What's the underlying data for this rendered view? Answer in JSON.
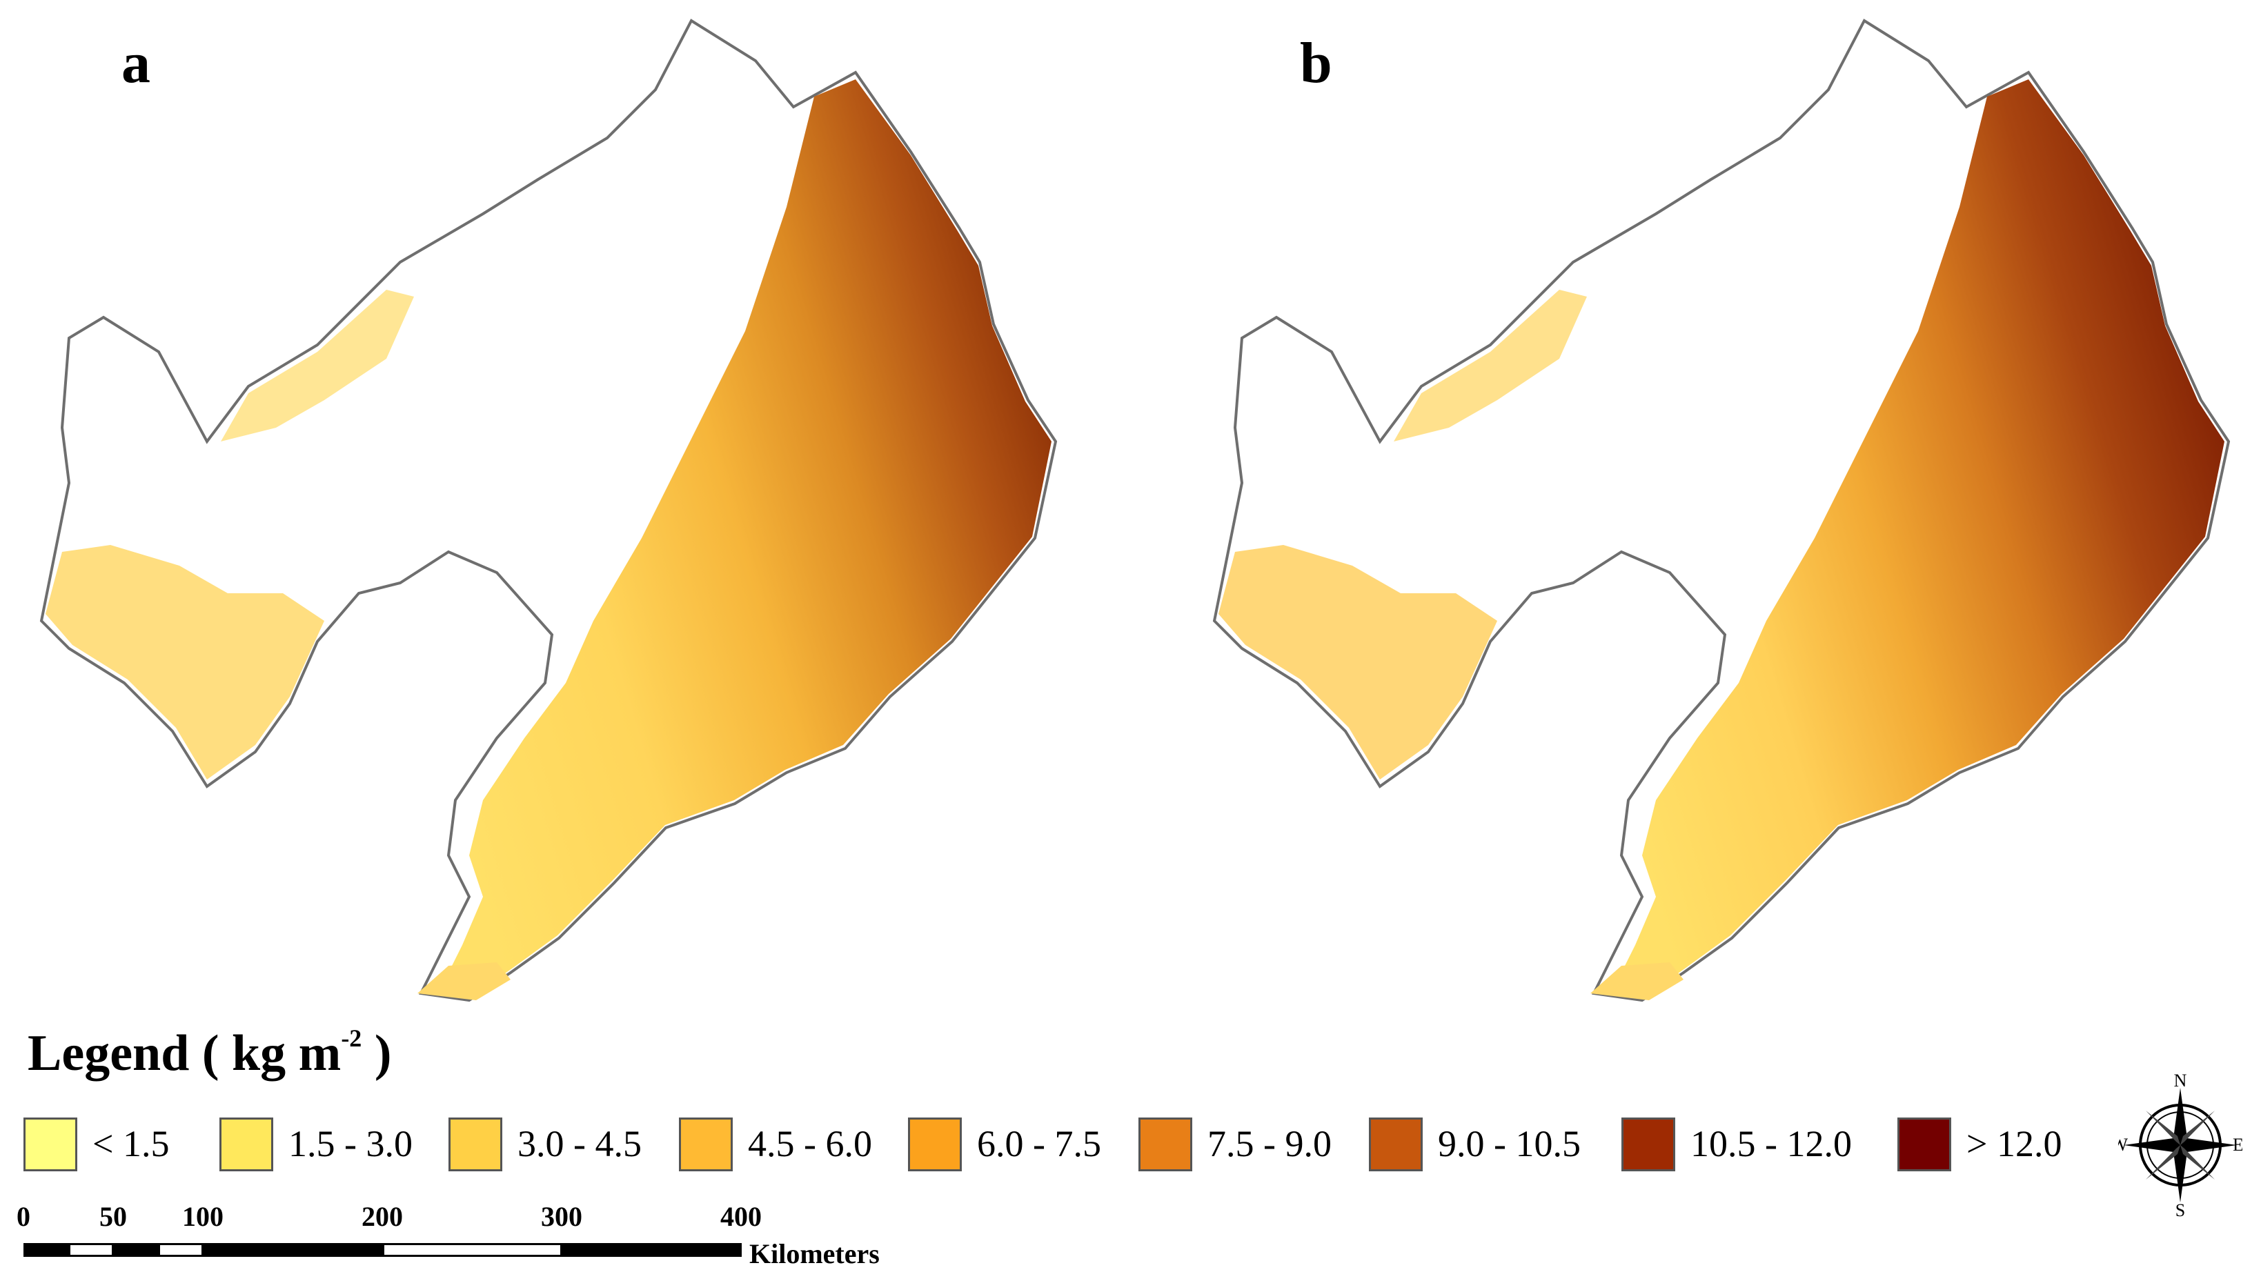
{
  "panels": [
    {
      "label": "a"
    },
    {
      "label": "b"
    }
  ],
  "legend": {
    "title_prefix": "Legend ( kg m",
    "title_exp": "-2",
    "title_suffix": " )",
    "classes": [
      {
        "label": "< 1.5",
        "color": "#FFFF80"
      },
      {
        "label": "1.5 - 3.0",
        "color": "#FFE85C"
      },
      {
        "label": "3.0 - 4.5",
        "color": "#FFD045"
      },
      {
        "label": "4.5 - 6.0",
        "color": "#FFBA33"
      },
      {
        "label": "6.0 - 7.5",
        "color": "#FCA21C"
      },
      {
        "label": "7.5 - 9.0",
        "color": "#E87F17"
      },
      {
        "label": "9.0 - 10.5",
        "color": "#C7570D"
      },
      {
        "label": "10.5 - 12.0",
        "color": "#9E2A02"
      },
      {
        "label": "> 12.0",
        "color": "#730000"
      }
    ]
  },
  "scalebar": {
    "ticks": [
      "0",
      "50",
      "100",
      "200",
      "300",
      "400"
    ],
    "unit": "Kilometers"
  },
  "compass": {
    "n": "N",
    "s": "S",
    "e": "E",
    "w": "W"
  }
}
